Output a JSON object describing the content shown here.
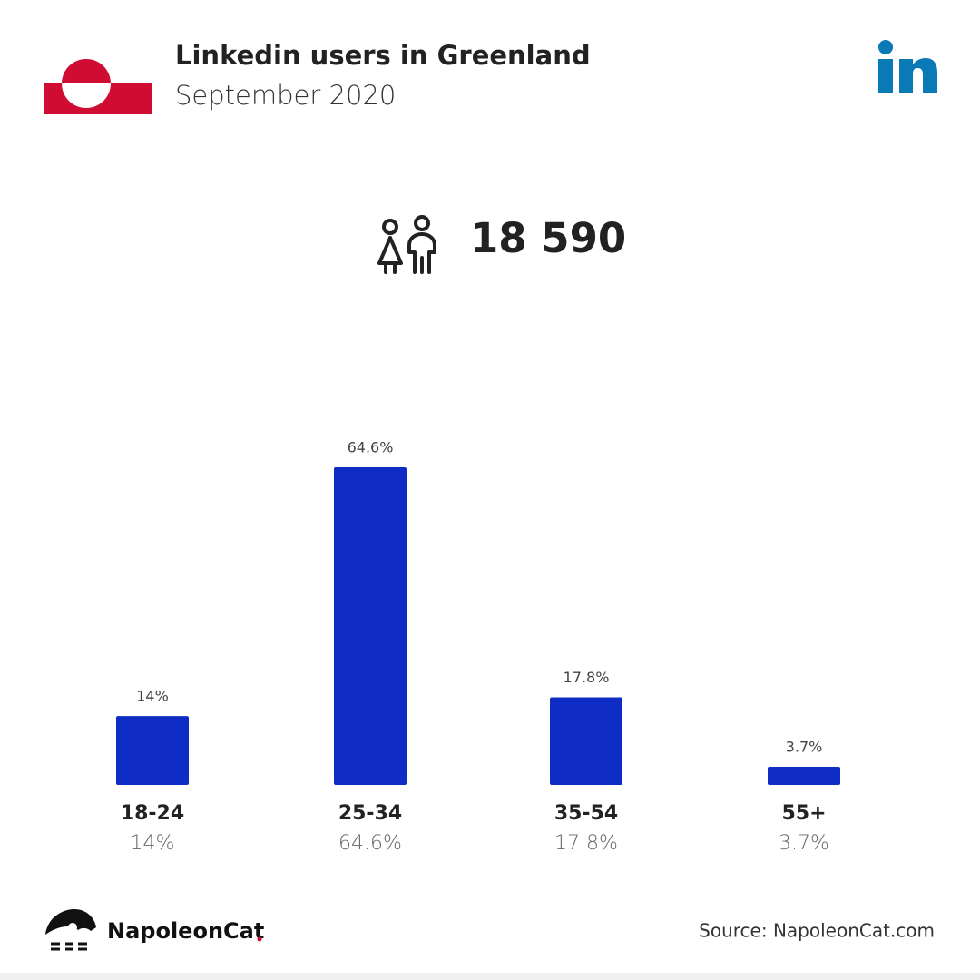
{
  "chart_data": {
    "type": "bar",
    "title": "Linkedin users in Greenland",
    "subtitle": "September 2020",
    "total": "18 590",
    "categories": [
      "18-24",
      "25-34",
      "35-54",
      "55+"
    ],
    "values": [
      14,
      64.6,
      17.8,
      3.7
    ],
    "value_labels": [
      "14%",
      "64.6%",
      "17.8%",
      "3.7%"
    ],
    "color": "#0f2cc4",
    "brand": "NapoleonCat",
    "source": "Source: NapoleonCat.com"
  }
}
